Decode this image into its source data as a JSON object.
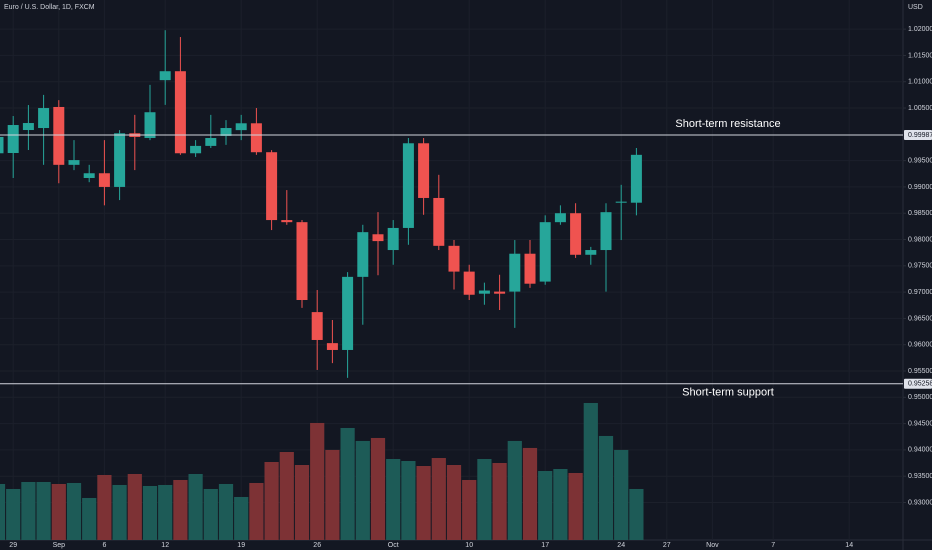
{
  "chart_data": {
    "type": "candlestick",
    "title": "Euro / U.S. Dollar, 1D, FXCM",
    "y_axis_label": "USD",
    "categories": [
      null,
      "29",
      null,
      null,
      "Sep",
      null,
      null,
      "6",
      null,
      null,
      null,
      "12",
      null,
      null,
      null,
      null,
      "19",
      null,
      null,
      null,
      null,
      "26",
      null,
      null,
      null,
      null,
      "Oct",
      null,
      null,
      null,
      null,
      "10",
      null,
      null,
      null,
      null,
      "17",
      null,
      null,
      null,
      null,
      "24",
      null,
      null,
      "27",
      null,
      null,
      "Nov",
      null,
      null,
      null,
      "7",
      null,
      null,
      null,
      null,
      "14"
    ],
    "open": [
      0.9964,
      0.99645,
      1.00082,
      1.0012,
      1.0052,
      0.9942,
      0.9917,
      0.9926,
      0.99,
      1.0002,
      0.9993,
      1.0103,
      1.012,
      0.9964,
      0.9978,
      0.9997,
      1.0008,
      1.0021,
      0.9966,
      0.9837,
      0.9833,
      0.9662,
      0.9603,
      0.959,
      0.9729,
      0.981,
      0.978,
      0.9822,
      0.9983,
      0.9879,
      0.9788,
      0.9739,
      0.9697,
      0.9701,
      0.9701,
      0.9773,
      0.972,
      0.9833,
      0.985,
      0.9771,
      0.978,
      0.987,
      0.987,
      null,
      null,
      null,
      null,
      null,
      null,
      null,
      null,
      null,
      null,
      null,
      null,
      null,
      null
    ],
    "high": [
      1.0015,
      1.00348,
      1.00557,
      1.0075,
      1.0065,
      0.9989,
      0.9942,
      0.9989,
      1.0008,
      1.0037,
      1.0094,
      1.0198,
      1.0185,
      0.9989,
      1.0037,
      1.0027,
      1.0037,
      1.005,
      0.997,
      0.9894,
      0.9837,
      0.9704,
      0.9647,
      0.9738,
      0.9828,
      0.9852,
      0.9837,
      0.9993,
      0.9993,
      0.9923,
      0.9799,
      0.9752,
      0.9718,
      0.9733,
      0.9799,
      0.9799,
      0.9846,
      0.9865,
      0.9869,
      0.9786,
      0.9869,
      0.9904,
      0.9974,
      null,
      null,
      null,
      null,
      null,
      null,
      null,
      null,
      null,
      null,
      null,
      null,
      null,
      null
    ],
    "low": [
      0.9945,
      0.9917,
      0.99702,
      0.9942,
      0.9907,
      0.9932,
      0.9909,
      0.9865,
      0.9875,
      0.9932,
      0.9989,
      1.0056,
      0.9961,
      0.9957,
      0.9974,
      0.998,
      0.9989,
      0.9961,
      0.9818,
      0.9828,
      0.967,
      0.9552,
      0.9565,
      0.9537,
      0.9638,
      0.9732,
      0.9752,
      0.979,
      0.9847,
      0.978,
      0.9705,
      0.9685,
      0.9676,
      0.9666,
      0.9632,
      0.9708,
      0.9714,
      0.9828,
      0.9765,
      0.9752,
      0.9701,
      0.9799,
      0.9846,
      null,
      null,
      null,
      null,
      null,
      null,
      null,
      null,
      null,
      null,
      null,
      null,
      null,
      null
    ],
    "close": [
      0.9995,
      1.00177,
      1.00215,
      1.005,
      0.9942,
      0.9951,
      0.9926,
      0.99,
      1.0002,
      0.9995,
      1.0042,
      1.012,
      0.9964,
      0.9978,
      0.9993,
      1.0012,
      1.0021,
      0.9966,
      0.9837,
      0.9833,
      0.9685,
      0.9609,
      0.959,
      0.9729,
      0.9814,
      0.9797,
      0.9822,
      0.9983,
      0.9879,
      0.9788,
      0.9739,
      0.9695,
      0.9703,
      0.9697,
      0.9773,
      0.9716,
      0.9833,
      0.985,
      0.9771,
      0.978,
      0.9852,
      0.9872,
      0.9961,
      null,
      null,
      null,
      null,
      null,
      null,
      null,
      null,
      null,
      null,
      null,
      null,
      null,
      null
    ],
    "volume": [
      0.93352,
      0.93257,
      0.9339,
      0.9339,
      0.93352,
      0.93371,
      0.93086,
      0.93523,
      0.93333,
      0.93542,
      0.93314,
      0.93333,
      0.93428,
      0.93542,
      0.93257,
      0.93352,
      0.93105,
      0.93371,
      0.9377,
      0.9396,
      0.93713,
      0.94512,
      0.93999,
      0.94417,
      0.9417,
      0.94227,
      0.93827,
      0.93789,
      0.93694,
      0.93846,
      0.93713,
      0.93428,
      0.93827,
      0.93751,
      0.9417,
      0.94037,
      0.93599,
      0.93637,
      0.93561,
      0.94892,
      0.94265,
      0.93999,
      0.93257,
      null,
      null,
      null,
      null,
      null,
      null,
      null,
      null,
      null,
      null,
      null,
      null,
      null,
      null
    ],
    "up_color": "#26a69a",
    "down_color": "#ef5350",
    "volume_up_color": "#1d5b57",
    "volume_down_color": "#7d3235",
    "ylim": [
      0.92287,
      1.02554
    ],
    "yticks": [
      {
        "value": 1.02,
        "label": "1.02000"
      },
      {
        "value": 1.015,
        "label": "1.01500"
      },
      {
        "value": 1.01,
        "label": "1.01000"
      },
      {
        "value": 1.005,
        "label": "1.00500"
      },
      {
        "value": 0.995,
        "label": "0.99500"
      },
      {
        "value": 0.99,
        "label": "0.99000"
      },
      {
        "value": 0.985,
        "label": "0.98500"
      },
      {
        "value": 0.98,
        "label": "0.98000"
      },
      {
        "value": 0.975,
        "label": "0.97500"
      },
      {
        "value": 0.97,
        "label": "0.97000"
      },
      {
        "value": 0.965,
        "label": "0.96500"
      },
      {
        "value": 0.96,
        "label": "0.96000"
      },
      {
        "value": 0.955,
        "label": "0.95500"
      },
      {
        "value": 0.95,
        "label": "0.95000"
      },
      {
        "value": 0.945,
        "label": "0.94500"
      },
      {
        "value": 0.94,
        "label": "0.94000"
      },
      {
        "value": 0.935,
        "label": "0.93500"
      },
      {
        "value": 0.93,
        "label": "0.93000"
      }
    ],
    "grid": true,
    "levels": [
      {
        "value": 0.99987,
        "annotation": "Short-term resistance"
      },
      {
        "value": 0.95258,
        "annotation": "Short-term support"
      }
    ]
  }
}
